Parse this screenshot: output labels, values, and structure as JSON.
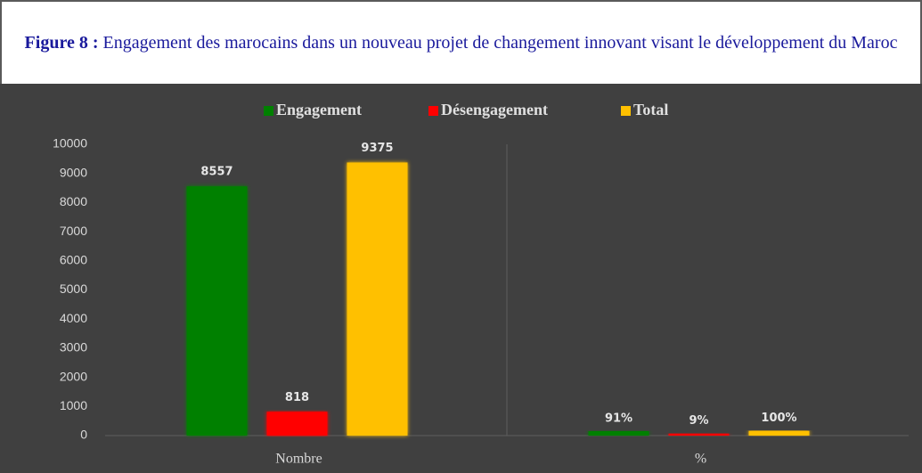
{
  "chart_data": {
    "type": "bar",
    "title_label": "Figure 8 :",
    "title": "Engagement des marocains dans un nouveau projet de changement innovant visant le développement du Maroc",
    "categories": [
      "Nombre",
      "%"
    ],
    "series": [
      {
        "name": "Engagement",
        "color": "#008000",
        "values": [
          8557,
          91
        ],
        "value_labels": [
          "8557",
          "91%"
        ]
      },
      {
        "name": "Désengagement",
        "color": "#ff0000",
        "values": [
          818,
          9
        ],
        "value_labels": [
          "818",
          "9%"
        ]
      },
      {
        "name": "Total",
        "color": "#ffc000",
        "values": [
          9375,
          100
        ],
        "value_labels": [
          "9375",
          "100%"
        ]
      }
    ],
    "ylim": [
      0,
      10000
    ],
    "yticks": [
      0,
      1000,
      2000,
      3000,
      4000,
      5000,
      6000,
      7000,
      8000,
      9000,
      10000
    ],
    "grid": false,
    "legend": "top"
  }
}
